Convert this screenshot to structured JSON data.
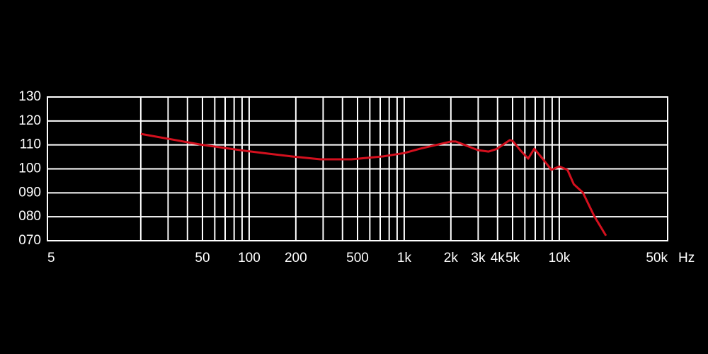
{
  "chart_data": {
    "type": "line",
    "x_unit": "Hz",
    "x_scale": "log",
    "xlim": [
      5,
      50000
    ],
    "xticks": [
      5,
      50,
      100,
      200,
      500,
      {
        "value": 1000,
        "label": "1k"
      },
      {
        "value": 2000,
        "label": "2k"
      },
      {
        "value": 3000,
        "label": "3k"
      },
      {
        "value": 4000,
        "label": "4k"
      },
      {
        "value": 5000,
        "label": "5k"
      },
      {
        "value": 10000,
        "label": "10k"
      },
      {
        "value": 50000,
        "label": "50k"
      }
    ],
    "x_minor_grid": [
      20,
      30,
      40,
      60,
      70,
      80,
      90,
      300,
      400,
      600,
      700,
      800,
      900,
      6000,
      7000,
      8000,
      9000
    ],
    "ylim": [
      70,
      130
    ],
    "yticks": [
      {
        "value": 70,
        "label": "070"
      },
      {
        "value": 80,
        "label": "080"
      },
      {
        "value": 90,
        "label": "090"
      },
      100,
      110,
      120,
      130
    ],
    "grid": true,
    "series": [
      {
        "color": "#d4101e",
        "x": [
          20,
          48,
          95,
          187,
          288,
          457,
          732,
          1000,
          1264,
          2000,
          2150,
          3000,
          3500,
          3950,
          4800,
          5000,
          5600,
          6300,
          6900,
          7800,
          8900,
          10000,
          11300,
          12400,
          14200,
          16800,
          20000
        ],
        "values": [
          114.6,
          110.2,
          107.5,
          105.2,
          104,
          104,
          105.2,
          106.6,
          108.4,
          111.4,
          111.4,
          107.8,
          107.2,
          108.3,
          112,
          111.7,
          107.8,
          104.3,
          108.4,
          104.3,
          99.6,
          101,
          99.6,
          93.6,
          90.1,
          80.3,
          72.1
        ]
      }
    ]
  }
}
